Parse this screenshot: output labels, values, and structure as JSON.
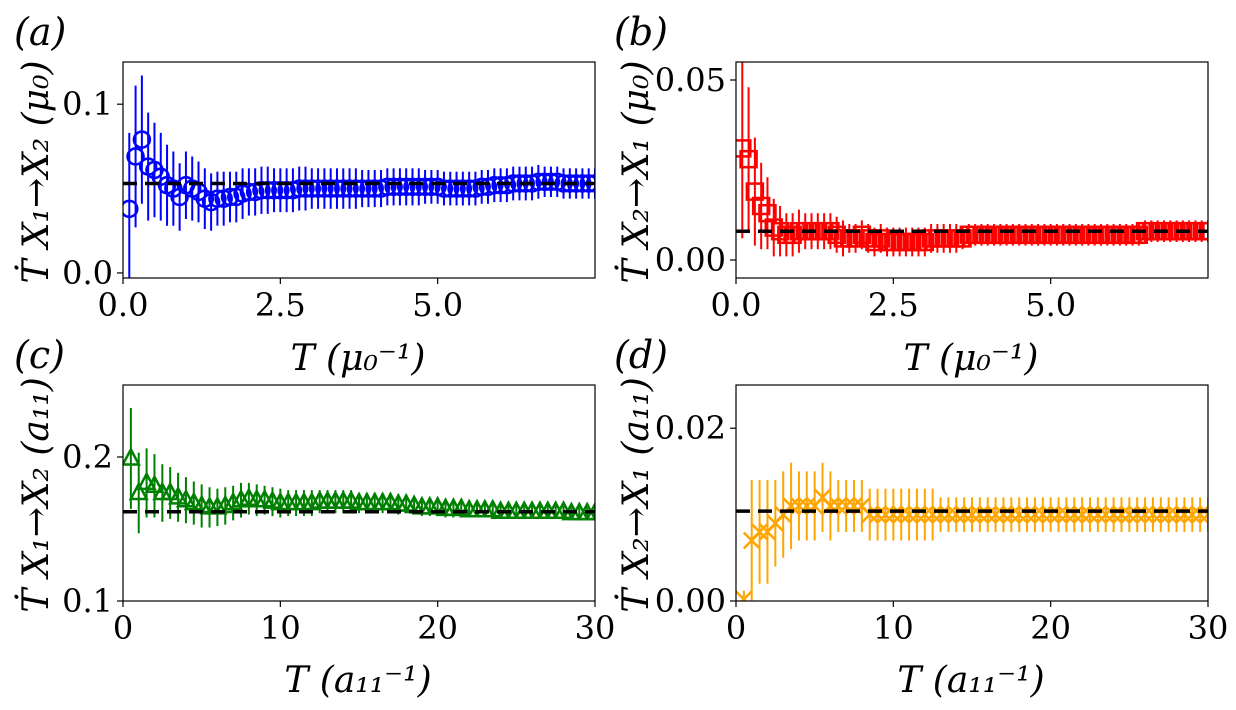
{
  "colors": {
    "a": "#0000ff",
    "b": "#ff0000",
    "c": "#008000",
    "d": "#ffa500"
  },
  "chart_data": [
    {
      "id": "a",
      "panel_label": "(a)",
      "type": "scatter",
      "marker": "circle",
      "ylabel": "Ṫ X₁→X₂ (μ₀)",
      "xlabel": "T (μ₀⁻¹)",
      "xlim": [
        0,
        7.5
      ],
      "ylim": [
        -0.003,
        0.125
      ],
      "xticks": [
        0,
        2.5,
        5.0
      ],
      "xtick_labels": [
        "0.0",
        "2.5",
        "5.0"
      ],
      "yticks": [
        0.0,
        0.1
      ],
      "ytick_labels": [
        "0.0",
        "0.1"
      ],
      "reference_value": 0.053,
      "x": [
        0.1,
        0.2,
        0.3,
        0.4,
        0.5,
        0.6,
        0.7,
        0.8,
        0.9,
        1.0,
        1.1,
        1.2,
        1.3,
        1.4,
        1.5,
        1.6,
        1.7,
        1.8,
        1.9,
        2.0,
        2.1,
        2.2,
        2.3,
        2.4,
        2.5,
        2.6,
        2.7,
        2.8,
        2.9,
        3.0,
        3.1,
        3.2,
        3.3,
        3.4,
        3.5,
        3.6,
        3.7,
        3.8,
        3.9,
        4.0,
        4.1,
        4.2,
        4.3,
        4.4,
        4.5,
        4.6,
        4.7,
        4.8,
        4.9,
        5.0,
        5.1,
        5.2,
        5.3,
        5.4,
        5.5,
        5.6,
        5.7,
        5.8,
        5.9,
        6.0,
        6.1,
        6.2,
        6.3,
        6.4,
        6.5,
        6.6,
        6.7,
        6.8,
        6.9,
        7.0,
        7.1,
        7.2,
        7.3,
        7.4,
        7.5
      ],
      "y": [
        0.038,
        0.069,
        0.079,
        0.063,
        0.061,
        0.057,
        0.052,
        0.05,
        0.045,
        0.052,
        0.05,
        0.048,
        0.044,
        0.042,
        0.044,
        0.044,
        0.045,
        0.045,
        0.047,
        0.048,
        0.048,
        0.049,
        0.049,
        0.049,
        0.049,
        0.049,
        0.049,
        0.05,
        0.05,
        0.05,
        0.05,
        0.05,
        0.05,
        0.05,
        0.05,
        0.05,
        0.05,
        0.05,
        0.05,
        0.05,
        0.05,
        0.051,
        0.051,
        0.051,
        0.051,
        0.051,
        0.051,
        0.051,
        0.051,
        0.051,
        0.05,
        0.05,
        0.05,
        0.05,
        0.05,
        0.05,
        0.051,
        0.051,
        0.052,
        0.052,
        0.052,
        0.053,
        0.053,
        0.053,
        0.053,
        0.054,
        0.054,
        0.054,
        0.054,
        0.053,
        0.053,
        0.053,
        0.053,
        0.053,
        0.053
      ],
      "err": [
        0.045,
        0.042,
        0.038,
        0.032,
        0.028,
        0.026,
        0.024,
        0.022,
        0.02,
        0.02,
        0.019,
        0.018,
        0.018,
        0.017,
        0.016,
        0.016,
        0.015,
        0.015,
        0.015,
        0.014,
        0.014,
        0.014,
        0.014,
        0.013,
        0.013,
        0.013,
        0.013,
        0.013,
        0.013,
        0.012,
        0.012,
        0.012,
        0.012,
        0.012,
        0.012,
        0.012,
        0.012,
        0.011,
        0.011,
        0.011,
        0.011,
        0.011,
        0.011,
        0.011,
        0.011,
        0.011,
        0.011,
        0.01,
        0.01,
        0.01,
        0.01,
        0.01,
        0.01,
        0.01,
        0.01,
        0.01,
        0.01,
        0.01,
        0.01,
        0.01,
        0.01,
        0.01,
        0.01,
        0.01,
        0.01,
        0.01,
        0.009,
        0.009,
        0.009,
        0.009,
        0.009,
        0.009,
        0.009,
        0.009,
        0.009
      ]
    },
    {
      "id": "b",
      "panel_label": "(b)",
      "type": "scatter",
      "marker": "square",
      "ylabel": "Ṫ X₂→X₁ (μ₀)",
      "xlabel": "T (μ₀⁻¹)",
      "xlim": [
        0,
        7.5
      ],
      "ylim": [
        -0.005,
        0.055
      ],
      "xticks": [
        0,
        2.5,
        5.0
      ],
      "xtick_labels": [
        "0.0",
        "2.5",
        "5.0"
      ],
      "yticks": [
        0.0,
        0.05
      ],
      "ytick_labels": [
        "0.00",
        "0.05"
      ],
      "reference_value": 0.008,
      "x": [
        0.1,
        0.2,
        0.3,
        0.4,
        0.5,
        0.6,
        0.7,
        0.8,
        0.9,
        1.0,
        1.1,
        1.2,
        1.3,
        1.4,
        1.5,
        1.6,
        1.7,
        1.8,
        1.9,
        2.0,
        2.1,
        2.2,
        2.3,
        2.4,
        2.5,
        2.6,
        2.7,
        2.8,
        2.9,
        3.0,
        3.1,
        3.2,
        3.3,
        3.4,
        3.5,
        3.6,
        3.7,
        3.8,
        3.9,
        4.0,
        4.1,
        4.2,
        4.3,
        4.4,
        4.5,
        4.6,
        4.7,
        4.8,
        4.9,
        5.0,
        5.1,
        5.2,
        5.3,
        5.4,
        5.5,
        5.6,
        5.7,
        5.8,
        5.9,
        6.0,
        6.1,
        6.2,
        6.3,
        6.4,
        6.5,
        6.6,
        6.7,
        6.8,
        6.9,
        7.0,
        7.1,
        7.2,
        7.3,
        7.4,
        7.5
      ],
      "y": [
        0.031,
        0.028,
        0.019,
        0.015,
        0.013,
        0.009,
        0.008,
        0.007,
        0.007,
        0.008,
        0.008,
        0.008,
        0.008,
        0.008,
        0.008,
        0.007,
        0.006,
        0.006,
        0.006,
        0.007,
        0.006,
        0.005,
        0.006,
        0.005,
        0.005,
        0.005,
        0.005,
        0.005,
        0.005,
        0.005,
        0.006,
        0.006,
        0.006,
        0.006,
        0.006,
        0.006,
        0.007,
        0.007,
        0.007,
        0.007,
        0.007,
        0.007,
        0.007,
        0.007,
        0.007,
        0.007,
        0.007,
        0.007,
        0.007,
        0.007,
        0.007,
        0.007,
        0.007,
        0.007,
        0.007,
        0.007,
        0.007,
        0.007,
        0.007,
        0.007,
        0.007,
        0.007,
        0.007,
        0.007,
        0.008,
        0.008,
        0.008,
        0.008,
        0.008,
        0.008,
        0.008,
        0.008,
        0.008,
        0.008,
        0.008
      ],
      "err": [
        0.025,
        0.02,
        0.015,
        0.012,
        0.01,
        0.008,
        0.007,
        0.006,
        0.006,
        0.006,
        0.005,
        0.005,
        0.005,
        0.005,
        0.005,
        0.005,
        0.005,
        0.004,
        0.004,
        0.004,
        0.004,
        0.004,
        0.004,
        0.004,
        0.004,
        0.004,
        0.004,
        0.004,
        0.004,
        0.004,
        0.004,
        0.004,
        0.004,
        0.004,
        0.004,
        0.003,
        0.003,
        0.003,
        0.003,
        0.003,
        0.003,
        0.003,
        0.003,
        0.003,
        0.003,
        0.003,
        0.003,
        0.003,
        0.003,
        0.003,
        0.003,
        0.003,
        0.003,
        0.003,
        0.003,
        0.003,
        0.003,
        0.003,
        0.003,
        0.003,
        0.003,
        0.003,
        0.003,
        0.003,
        0.003,
        0.003,
        0.003,
        0.003,
        0.003,
        0.003,
        0.003,
        0.003,
        0.003,
        0.003,
        0.003
      ]
    },
    {
      "id": "c",
      "panel_label": "(c)",
      "type": "scatter",
      "marker": "triangle",
      "ylabel": "Ṫ X₁→X₂ (a₁₁)",
      "xlabel": "T (a₁₁⁻¹)",
      "xlim": [
        0,
        30
      ],
      "ylim": [
        0.1,
        0.25
      ],
      "xticks": [
        0,
        10,
        20,
        30
      ],
      "xtick_labels": [
        "0",
        "10",
        "20",
        "30"
      ],
      "yticks": [
        0.1,
        0.2
      ],
      "ytick_labels": [
        "0.1",
        "0.2"
      ],
      "reference_value": 0.162,
      "x": [
        0.5,
        1.0,
        1.5,
        2.0,
        2.5,
        3.0,
        3.5,
        4.0,
        4.5,
        5.0,
        5.5,
        6.0,
        6.5,
        7.0,
        7.5,
        8.0,
        8.5,
        9.0,
        9.5,
        10.0,
        10.5,
        11.0,
        11.5,
        12.0,
        12.5,
        13.0,
        13.5,
        14.0,
        14.5,
        15.0,
        15.5,
        16.0,
        16.5,
        17.0,
        17.5,
        18.0,
        18.5,
        19.0,
        19.5,
        20.0,
        20.5,
        21.0,
        21.5,
        22.0,
        22.5,
        23.0,
        23.5,
        24.0,
        24.5,
        25.0,
        25.5,
        26.0,
        26.5,
        27.0,
        27.5,
        28.0,
        28.5,
        29.0,
        29.5,
        30.0
      ],
      "y": [
        0.199,
        0.175,
        0.182,
        0.18,
        0.175,
        0.175,
        0.172,
        0.17,
        0.168,
        0.166,
        0.165,
        0.165,
        0.166,
        0.168,
        0.17,
        0.171,
        0.17,
        0.17,
        0.169,
        0.168,
        0.168,
        0.168,
        0.168,
        0.168,
        0.169,
        0.169,
        0.169,
        0.169,
        0.169,
        0.168,
        0.168,
        0.168,
        0.168,
        0.168,
        0.167,
        0.167,
        0.166,
        0.165,
        0.165,
        0.165,
        0.164,
        0.164,
        0.164,
        0.163,
        0.163,
        0.163,
        0.163,
        0.162,
        0.162,
        0.162,
        0.162,
        0.162,
        0.162,
        0.162,
        0.162,
        0.162,
        0.161,
        0.161,
        0.161,
        0.161
      ],
      "err": [
        0.035,
        0.028,
        0.024,
        0.022,
        0.02,
        0.018,
        0.017,
        0.016,
        0.015,
        0.015,
        0.014,
        0.013,
        0.013,
        0.012,
        0.012,
        0.011,
        0.011,
        0.01,
        0.01,
        0.01,
        0.009,
        0.009,
        0.009,
        0.009,
        0.008,
        0.008,
        0.008,
        0.008,
        0.008,
        0.007,
        0.007,
        0.007,
        0.007,
        0.007,
        0.007,
        0.006,
        0.006,
        0.006,
        0.006,
        0.006,
        0.006,
        0.006,
        0.006,
        0.005,
        0.005,
        0.005,
        0.005,
        0.005,
        0.005,
        0.005,
        0.005,
        0.005,
        0.005,
        0.005,
        0.005,
        0.004,
        0.004,
        0.004,
        0.004,
        0.004
      ]
    },
    {
      "id": "d",
      "panel_label": "(d)",
      "type": "scatter",
      "marker": "x",
      "ylabel": "Ṫ X₂→X₁ (a₁₁)",
      "xlabel": "T (a₁₁⁻¹)",
      "xlim": [
        0,
        30
      ],
      "ylim": [
        0.0,
        0.025
      ],
      "xticks": [
        0,
        10,
        20,
        30
      ],
      "xtick_labels": [
        "0",
        "10",
        "20",
        "30"
      ],
      "yticks": [
        0.0,
        0.02
      ],
      "ytick_labels": [
        "0.00",
        "0.02"
      ],
      "reference_value": 0.0104,
      "x": [
        0.5,
        1.0,
        1.5,
        2.0,
        2.5,
        3.0,
        3.5,
        4.0,
        4.5,
        5.0,
        5.5,
        6.0,
        6.5,
        7.0,
        7.5,
        8.0,
        8.5,
        9.0,
        9.5,
        10.0,
        10.5,
        11.0,
        11.5,
        12.0,
        12.5,
        13.0,
        13.5,
        14.0,
        14.5,
        15.0,
        15.5,
        16.0,
        16.5,
        17.0,
        17.5,
        18.0,
        18.5,
        19.0,
        19.5,
        20.0,
        20.5,
        21.0,
        21.5,
        22.0,
        22.5,
        23.0,
        23.5,
        24.0,
        24.5,
        25.0,
        25.5,
        26.0,
        26.5,
        27.0,
        27.5,
        28.0,
        28.5,
        29.0,
        29.5,
        30.0
      ],
      "y": [
        0.0002,
        0.007,
        0.008,
        0.008,
        0.009,
        0.01,
        0.011,
        0.011,
        0.011,
        0.011,
        0.012,
        0.011,
        0.011,
        0.011,
        0.011,
        0.011,
        0.01,
        0.01,
        0.01,
        0.01,
        0.01,
        0.01,
        0.01,
        0.01,
        0.01,
        0.01,
        0.01,
        0.01,
        0.01,
        0.01,
        0.01,
        0.01,
        0.01,
        0.01,
        0.01,
        0.01,
        0.01,
        0.01,
        0.01,
        0.01,
        0.01,
        0.01,
        0.01,
        0.01,
        0.01,
        0.01,
        0.01,
        0.01,
        0.01,
        0.01,
        0.01,
        0.01,
        0.01,
        0.01,
        0.01,
        0.01,
        0.01,
        0.01,
        0.01,
        0.01
      ],
      "err": [
        0.001,
        0.007,
        0.006,
        0.006,
        0.005,
        0.005,
        0.005,
        0.004,
        0.004,
        0.004,
        0.004,
        0.004,
        0.003,
        0.003,
        0.003,
        0.003,
        0.003,
        0.003,
        0.003,
        0.003,
        0.003,
        0.003,
        0.003,
        0.003,
        0.003,
        0.002,
        0.002,
        0.002,
        0.002,
        0.002,
        0.002,
        0.002,
        0.002,
        0.002,
        0.002,
        0.002,
        0.002,
        0.002,
        0.002,
        0.002,
        0.002,
        0.002,
        0.002,
        0.002,
        0.002,
        0.002,
        0.002,
        0.002,
        0.002,
        0.002,
        0.002,
        0.002,
        0.002,
        0.002,
        0.002,
        0.002,
        0.002,
        0.002,
        0.002,
        0.002
      ]
    }
  ]
}
